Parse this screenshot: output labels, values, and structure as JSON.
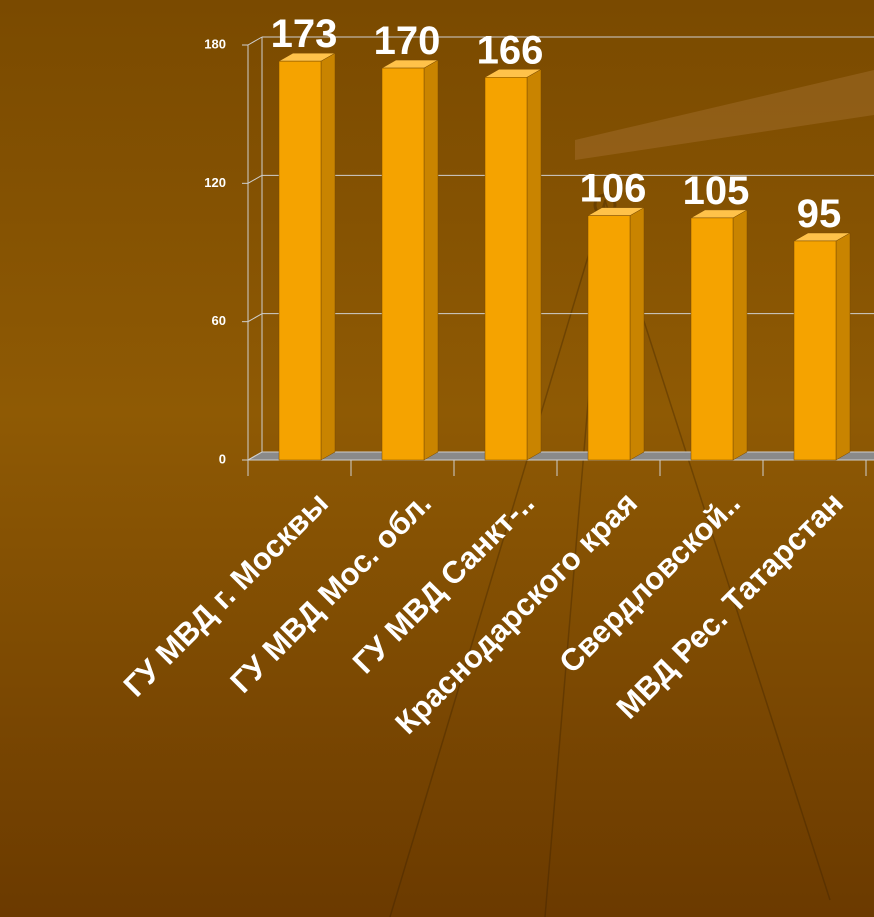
{
  "chart_data": {
    "type": "bar",
    "categories": [
      "ГУ МВД г. Москвы",
      "ГУ МВД Мос. обл.",
      "ГУ МВД Санкт-..",
      "Краснодарского края",
      "Свердловской..",
      "МВД Рес. Татарстан"
    ],
    "values": [
      173,
      170,
      166,
      106,
      105,
      95
    ],
    "color": "#f5a300",
    "ylim": [
      0,
      180
    ],
    "yticks": [
      0,
      60,
      120,
      180
    ],
    "grid": true
  }
}
